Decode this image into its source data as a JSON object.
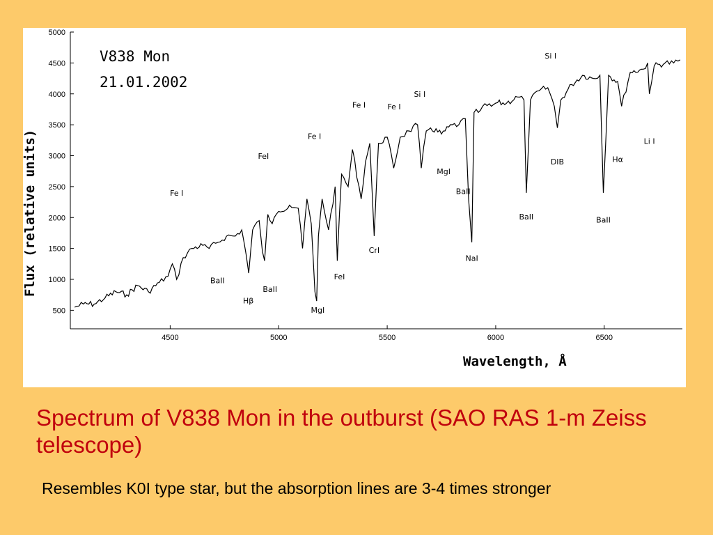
{
  "slide": {
    "title": "Spectrum of V838 Mon in the outburst (SAO RAS 1-m Zeiss telescope)",
    "subtitle": "Resembles K0I type star, but the absorption lines are 3-4 times stronger",
    "background_color": "#fdca6a",
    "title_color": "#c0000d"
  },
  "chart_data": {
    "type": "line",
    "title": "V838 Mon",
    "subtitle": "21.01.2002",
    "xlabel": "Wavelength, Å",
    "ylabel": "Flux (relative units)",
    "xlim": [
      4040,
      6860
    ],
    "ylim": [
      200,
      5000
    ],
    "x_ticks": [
      4500,
      5000,
      5500,
      6000,
      6500
    ],
    "y_ticks": [
      500,
      1000,
      1500,
      2000,
      2500,
      3000,
      3500,
      4000,
      4500,
      5000
    ],
    "grid": false,
    "series": [
      {
        "color": "#000000",
        "x": [
          4060,
          4100,
          4150,
          4200,
          4250,
          4300,
          4350,
          4400,
          4450,
          4490,
          4510,
          4530,
          4560,
          4600,
          4650,
          4680,
          4720,
          4760,
          4800,
          4830,
          4850,
          4862,
          4880,
          4910,
          4925,
          4935,
          4950,
          4970,
          5000,
          5050,
          5090,
          5110,
          5130,
          5150,
          5167,
          5175,
          5183,
          5200,
          5230,
          5260,
          5270,
          5290,
          5320,
          5340,
          5380,
          5400,
          5420,
          5440,
          5460,
          5500,
          5530,
          5560,
          5600,
          5640,
          5657,
          5680,
          5700,
          5750,
          5800,
          5830,
          5860,
          5875,
          5890,
          5900,
          5920,
          5940,
          5980,
          6000,
          6050,
          6100,
          6130,
          6141,
          6160,
          6200,
          6240,
          6270,
          6284,
          6300,
          6350,
          6400,
          6450,
          6480,
          6496,
          6520,
          6562,
          6580,
          6620,
          6680,
          6700,
          6708,
          6730,
          6780,
          6820,
          6850
        ],
        "y": [
          550,
          600,
          600,
          700,
          800,
          750,
          900,
          800,
          950,
          1050,
          1250,
          1000,
          1350,
          1500,
          1550,
          1500,
          1600,
          1700,
          1700,
          1800,
          1400,
          1100,
          1800,
          1950,
          1450,
          1300,
          2050,
          1900,
          2100,
          2200,
          2150,
          1500,
          2300,
          1900,
          800,
          650,
          1700,
          2300,
          1800,
          2500,
          1300,
          2700,
          2500,
          3100,
          2300,
          2900,
          3200,
          1700,
          3200,
          3300,
          2800,
          3300,
          3400,
          3500,
          2800,
          3400,
          3450,
          3350,
          3500,
          3500,
          3600,
          2300,
          1600,
          3700,
          3700,
          3800,
          3800,
          3850,
          3850,
          3950,
          3900,
          2400,
          3900,
          4050,
          4100,
          3800,
          3450,
          3900,
          4150,
          4300,
          4250,
          4300,
          2400,
          4300,
          4200,
          3800,
          4350,
          4400,
          4500,
          4000,
          4450,
          4500,
          4500,
          4550
        ]
      }
    ],
    "line_labels": [
      {
        "text": "Fe I",
        "x": 4530,
        "y": 2350
      },
      {
        "text": "FeI",
        "x": 4930,
        "y": 2950
      },
      {
        "text": "Fe I",
        "x": 5165,
        "y": 3270
      },
      {
        "text": "Fe I",
        "x": 5370,
        "y": 3780
      },
      {
        "text": "Fe I",
        "x": 5532,
        "y": 3750
      },
      {
        "text": "Si I",
        "x": 5650,
        "y": 3950
      },
      {
        "text": "Si I",
        "x": 6253,
        "y": 4570
      },
      {
        "text": "BaII",
        "x": 4718,
        "y": 940
      },
      {
        "text": "Hβ",
        "x": 4860,
        "y": 610
      },
      {
        "text": "BaII",
        "x": 4960,
        "y": 800
      },
      {
        "text": "MgI",
        "x": 5180,
        "y": 460
      },
      {
        "text": "FeI",
        "x": 5280,
        "y": 1000
      },
      {
        "text": "CrI",
        "x": 5440,
        "y": 1430
      },
      {
        "text": "MgI",
        "x": 5760,
        "y": 2700
      },
      {
        "text": "BaII",
        "x": 5850,
        "y": 2380
      },
      {
        "text": "NaI",
        "x": 5890,
        "y": 1300
      },
      {
        "text": "BaII",
        "x": 6141,
        "y": 1970
      },
      {
        "text": "DIB",
        "x": 6284,
        "y": 2860
      },
      {
        "text": "BaII",
        "x": 6496,
        "y": 1920
      },
      {
        "text": "Hα",
        "x": 6562,
        "y": 2900
      },
      {
        "text": "Li I",
        "x": 6708,
        "y": 3190
      }
    ]
  }
}
